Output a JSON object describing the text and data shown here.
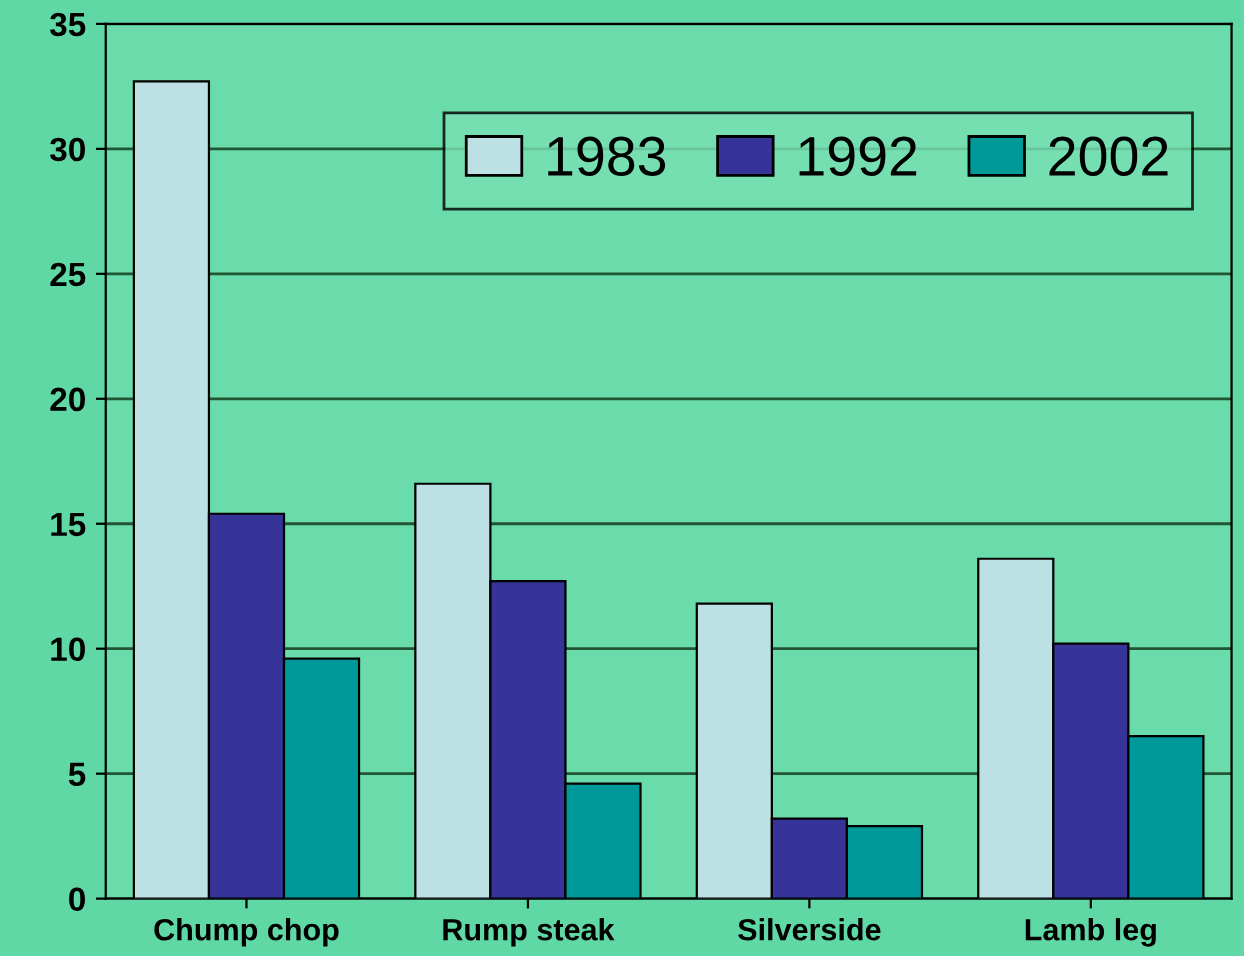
{
  "chart_data": {
    "type": "bar",
    "categories": [
      "Chump chop",
      "Rump steak",
      "Silverside",
      "Lamb leg"
    ],
    "series": [
      {
        "name": "1983",
        "color": "#bce0e3",
        "values": [
          32.7,
          16.6,
          11.8,
          13.6
        ]
      },
      {
        "name": "1992",
        "color": "#363499",
        "values": [
          15.4,
          12.7,
          3.2,
          10.2
        ]
      },
      {
        "name": "2002",
        "color": "#009999",
        "values": [
          9.6,
          4.6,
          2.9,
          6.5
        ]
      }
    ],
    "ylim": [
      0,
      35
    ],
    "yticks": [
      0,
      5,
      10,
      15,
      20,
      25,
      30,
      35
    ],
    "grid": "y",
    "legend": "top right"
  }
}
